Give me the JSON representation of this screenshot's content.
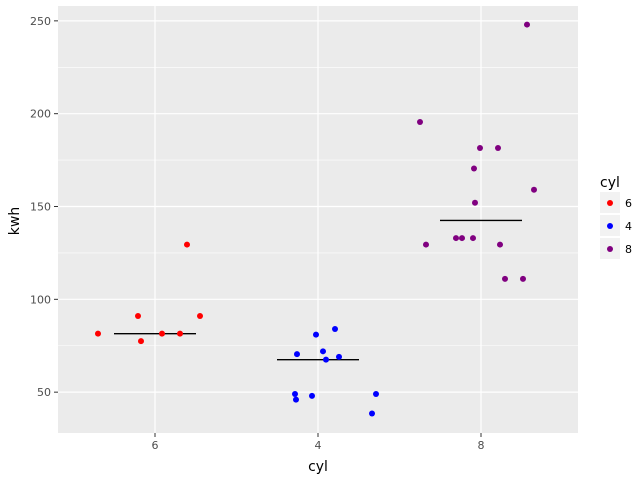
{
  "chart_data": {
    "type": "scatter",
    "xlabel": "cyl",
    "ylabel": "kwh",
    "x_categories": [
      "6",
      "4",
      "8"
    ],
    "y_ticks": [
      50,
      100,
      150,
      200,
      250
    ],
    "ylim": [
      28,
      258
    ],
    "legend": {
      "title": "cyl",
      "placement": "right",
      "entries": [
        {
          "label": "6",
          "color": "#ff0000"
        },
        {
          "label": "4",
          "color": "#0000ff"
        },
        {
          "label": "8",
          "color": "#800080"
        }
      ]
    },
    "series": [
      {
        "name": "6",
        "color": "#ff0000",
        "points": [
          {
            "x": "6",
            "y": 81.5
          },
          {
            "x": "6",
            "y": 91.0
          },
          {
            "x": "6",
            "y": 77.5
          },
          {
            "x": "6",
            "y": 81.5
          },
          {
            "x": "6",
            "y": 81.5
          },
          {
            "x": "6",
            "y": 129.5
          },
          {
            "x": "6",
            "y": 91.0
          }
        ],
        "median": 81.5
      },
      {
        "name": "4",
        "color": "#0000ff",
        "points": [
          {
            "x": "4",
            "y": 70.5
          },
          {
            "x": "4",
            "y": 49.0
          },
          {
            "x": "4",
            "y": 46.0
          },
          {
            "x": "4",
            "y": 48.0
          },
          {
            "x": "4",
            "y": 81.0
          },
          {
            "x": "4",
            "y": 72.0
          },
          {
            "x": "4",
            "y": 67.5
          },
          {
            "x": "4",
            "y": 84.0
          },
          {
            "x": "4",
            "y": 69.0
          },
          {
            "x": "4",
            "y": 38.5
          },
          {
            "x": "4",
            "y": 49.0
          }
        ],
        "median": 67.5
      },
      {
        "name": "8",
        "color": "#800080",
        "points": [
          {
            "x": "8",
            "y": 195.5
          },
          {
            "x": "8",
            "y": 129.5
          },
          {
            "x": "8",
            "y": 133.0
          },
          {
            "x": "8",
            "y": 133.0
          },
          {
            "x": "8",
            "y": 170.5
          },
          {
            "x": "8",
            "y": 152.0
          },
          {
            "x": "8",
            "y": 133.0
          },
          {
            "x": "8",
            "y": 181.5
          },
          {
            "x": "8",
            "y": 181.5
          },
          {
            "x": "8",
            "y": 129.5
          },
          {
            "x": "8",
            "y": 111.0
          },
          {
            "x": "8",
            "y": 111.0
          },
          {
            "x": "8",
            "y": 248.0
          },
          {
            "x": "8",
            "y": 159.0
          }
        ],
        "median": 142.5
      }
    ]
  }
}
